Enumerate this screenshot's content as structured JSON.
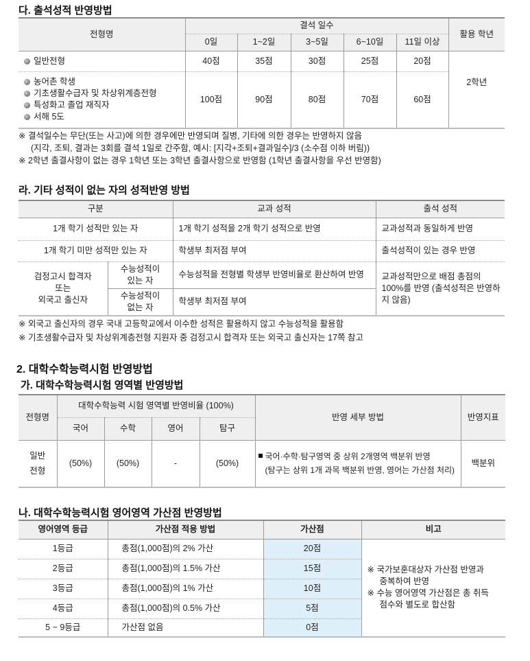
{
  "attendance": {
    "heading": "다. 출석성적 반영방법",
    "headers": {
      "type": "전형명",
      "absence_days": "결석 일수",
      "grade_used": "활용 학년",
      "days": [
        "0일",
        "1~2일",
        "3~5일",
        "6~10일",
        "11일 이상"
      ]
    },
    "rows": [
      {
        "types": [
          "일반전형"
        ],
        "scores": [
          "40점",
          "35점",
          "30점",
          "25점",
          "20점"
        ]
      },
      {
        "types": [
          "농어촌 학생",
          "기초생활수급자 및 차상위계층전형",
          "특성화고 졸업 재직자",
          "서해 5도"
        ],
        "scores": [
          "100점",
          "90점",
          "80점",
          "70점",
          "60점"
        ]
      }
    ],
    "grade_used_value": "2학년",
    "notes": [
      "※ 결석일수는 무단(또는 사고)에 의한 경우에만 반영되며 질병, 기타에 의한 경우는 반영하지 않음",
      "(지각, 조퇴, 결과는 3회를 결석 1일로 간주함, 예시: [지각+조퇴+결과일수]/3 (소수점 이하 버림))",
      "※ 2학년 출결사항이 없는 경우 1학년 또는 3학년 출결사항으로 반영함 (1학년 출결사항을 우선 반영함)"
    ]
  },
  "no_grades": {
    "heading": "라. 기타 성적이 없는 자의 성적반영 방법",
    "headers": [
      "구분",
      "교과 성적",
      "출석 성적"
    ],
    "rows": [
      {
        "category": "1개 학기 성적만 있는 자",
        "subject": "1개 학기 성적을 2개 학기 성적으로 반영",
        "attendance": "교과성적과 동일하게 반영"
      },
      {
        "category": "1개 학기 미만 성적만 있는 자",
        "subject": "학생부 최저점 부여",
        "attendance": "출석성적이 있는 경우 반영"
      }
    ],
    "ged": {
      "category_lines": [
        "검정고시 합격자",
        "또는",
        "외국고 출신자"
      ],
      "sub": [
        {
          "label_lines": [
            "수능성적이",
            "있는 자"
          ],
          "subject": "수능성적을 전형별 학생부 반영비율로 환산하여 반영"
        },
        {
          "label_lines": [
            "수능성적이",
            "없는 자"
          ],
          "subject": "학생부 최저점 부여"
        }
      ],
      "attendance": "교과성적만으로 배점 총점의 100%를 반영 (출석성적은 반영하지 않음)"
    },
    "notes": [
      "※ 외국고 출신자의 경우 국내 고등학교에서 이수한 성적은 활용하지 않고 수능성적을 활용함",
      "※ 기초생활수급자 및 차상위계층전형 지원자 중 검정고시 합격자 또는 외국고 출신자는 17쪽 참고"
    ]
  },
  "csat": {
    "heading": "2. 대학수학능력시험 반영방법",
    "sub_heading": "가. 대학수학능력시험 영역별 반영방법",
    "headers": {
      "type": "전형명",
      "ratio": "대학수학능력 시험 영역별 반영비율 (100%)",
      "subjects": [
        "국어",
        "수학",
        "영어",
        "탐구"
      ],
      "method": "반영 세부 방법",
      "index": "반영지표"
    },
    "row": {
      "type_lines": [
        "일반",
        "전형"
      ],
      "values": [
        "(50%)",
        "(50%)",
        "-",
        "(50%)"
      ],
      "method_lines": [
        "국어·수학·탐구영역 중 상위 2개영역 백분위 반영",
        "(탐구는 상위 1개 과목 백분위 반영, 영어는 가산점 처리)"
      ],
      "index": "백분위"
    }
  },
  "english": {
    "heading": "나. 대학수학능력시험 영어영역 가산점 반영방법",
    "headers": [
      "영어영역 등급",
      "가산점 적용 방법",
      "가산점",
      "비고"
    ],
    "rows": [
      {
        "grade": "1등급",
        "method": "총점(1,000점)의 2% 가산",
        "points": "20점"
      },
      {
        "grade": "2등급",
        "method": "총점(1,000점)의 1.5% 가산",
        "points": "15점"
      },
      {
        "grade": "3등급",
        "method": "총점(1,000점)의 1% 가산",
        "points": "10점"
      },
      {
        "grade": "4등급",
        "method": "총점(1,000점)의 0.5% 가산",
        "points": "5점"
      },
      {
        "grade": "5 ~ 9등급",
        "method": "가산점 없음",
        "points": "0점"
      }
    ],
    "remarks": [
      {
        "first": "※ 국가보훈대상자 가산점 반영과",
        "rest": "중복하여 반영"
      },
      {
        "first": "※ 수능 영어영역 가산점은 총 취득",
        "rest": "점수와 별도로 합산함"
      }
    ],
    "highlight_color": "#dff0fb"
  }
}
